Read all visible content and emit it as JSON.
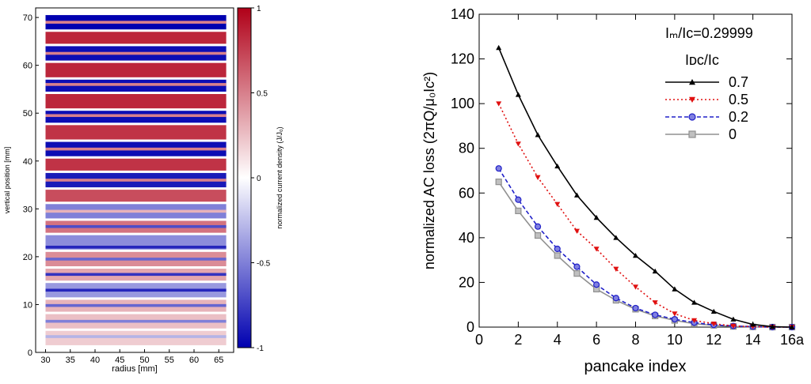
{
  "chart_data": [
    {
      "type": "heatmap",
      "xlabel": "radius [mm]",
      "ylabel": "vertical position [mm]",
      "xlim": [
        28,
        68
      ],
      "ylim": [
        0,
        72
      ],
      "x_ticks": [
        "30",
        "35",
        "40",
        "45",
        "50",
        "55",
        "60",
        "65"
      ],
      "y_ticks": [
        "0",
        "10",
        "20",
        "30",
        "40",
        "50",
        "60",
        "70"
      ],
      "x_extent": [
        30,
        66.5
      ],
      "layer_bands": [
        {
          "y0": 67.5,
          "y1": 70.5,
          "value": -1
        },
        {
          "y0": 64.5,
          "y1": 67.0,
          "value": 0.85
        },
        {
          "y0": 61.0,
          "y1": 64.0,
          "value": -0.95
        },
        {
          "y0": 57.5,
          "y1": 60.5,
          "value": 0.85
        },
        {
          "y0": 54.5,
          "y1": 57.0,
          "value": -0.95
        },
        {
          "y0": 51.0,
          "y1": 54.0,
          "value": 0.85
        },
        {
          "y0": 48.0,
          "y1": 50.5,
          "value": -0.95
        },
        {
          "y0": 44.5,
          "y1": 47.5,
          "value": 0.8
        },
        {
          "y0": 41.0,
          "y1": 44.0,
          "value": -0.95
        },
        {
          "y0": 38.0,
          "y1": 40.5,
          "value": 0.8
        },
        {
          "y0": 34.5,
          "y1": 37.5,
          "value": -0.9
        },
        {
          "y0": 31.5,
          "y1": 34.0,
          "value": 0.7
        },
        {
          "y0": 28.0,
          "y1": 31.0,
          "value": -0.5
        },
        {
          "y0": 25.0,
          "y1": 27.5,
          "value": 0.55
        },
        {
          "y0": 21.5,
          "y1": 24.5,
          "value": -0.45
        },
        {
          "y0": 18.0,
          "y1": 21.0,
          "value": 0.45
        },
        {
          "y0": 15.0,
          "y1": 17.5,
          "value": 0.35
        },
        {
          "y0": 11.5,
          "y1": 14.5,
          "value": -0.4
        },
        {
          "y0": 8.5,
          "y1": 11.0,
          "value": 0.3
        },
        {
          "y0": 5.0,
          "y1": 8.0,
          "value": 0.25
        },
        {
          "y0": 1.5,
          "y1": 4.5,
          "value": 0.2
        }
      ],
      "stripes": [
        {
          "y": 69.0,
          "value": 0.5
        },
        {
          "y": 62.5,
          "value": 0.5
        },
        {
          "y": 56.0,
          "value": 0.5
        },
        {
          "y": 49.5,
          "value": 0.5
        },
        {
          "y": 42.5,
          "value": 0.5
        },
        {
          "y": 36.0,
          "value": 0.5
        },
        {
          "y": 29.5,
          "value": 0.3
        },
        {
          "y": 26.3,
          "value": -0.7
        },
        {
          "y": 22.0,
          "value": -0.85
        },
        {
          "y": 19.5,
          "value": -0.6
        },
        {
          "y": 16.3,
          "value": -0.8
        },
        {
          "y": 13.0,
          "value": -0.85
        },
        {
          "y": 9.8,
          "value": -0.6
        },
        {
          "y": 6.5,
          "value": -0.5
        },
        {
          "y": 3.3,
          "value": -0.3
        }
      ],
      "colorbar": {
        "label": "normalized current density (J/J₀)",
        "range": [
          -1,
          1
        ],
        "ticks": [
          "1",
          "0.5",
          "0",
          "-0.5",
          "-1"
        ],
        "colors": {
          "low": "#0000b0",
          "mid": "#ffffff",
          "high": "#b00018"
        }
      }
    },
    {
      "type": "line",
      "xlabel": "pancake index",
      "ylabel": "normalized AC loss (2πQ/μ₀Iᴄ²)",
      "annotation": "Iₘ/Iᴄ=0.29999",
      "legend_title": "Iᴅᴄ/Iᴄ",
      "legend_position": "top-right",
      "xlim": [
        0,
        16
      ],
      "ylim": [
        0,
        140
      ],
      "x_ticks": [
        "0",
        "2",
        "4",
        "6",
        "8",
        "10",
        "12",
        "14",
        "16a"
      ],
      "y_ticks": [
        "0",
        "20",
        "40",
        "60",
        "80",
        "100",
        "120",
        "140"
      ],
      "grid": false,
      "x": [
        1,
        2,
        3,
        4,
        5,
        6,
        7,
        8,
        9,
        10,
        11,
        12,
        13,
        14,
        15,
        16
      ],
      "series": [
        {
          "name": "0.7",
          "color": "#000000",
          "marker": "triangle-up",
          "dash": "solid",
          "values": [
            125,
            104,
            86,
            72,
            59,
            49,
            40,
            32,
            25,
            17,
            11,
            7,
            3.5,
            1.2,
            0.2,
            0
          ]
        },
        {
          "name": "0.5",
          "color": "#e01010",
          "marker": "triangle-down",
          "dash": "dotted",
          "values": [
            100,
            82,
            67,
            55,
            43,
            35,
            26,
            18,
            11,
            6,
            3,
            1.5,
            0.5,
            0.2,
            0,
            0
          ]
        },
        {
          "name": "0.2",
          "color": "#2020c8",
          "marker": "circle",
          "dash": "dashed",
          "values": [
            71,
            57,
            45,
            35,
            27,
            19,
            13,
            8.5,
            5.5,
            3.5,
            2,
            1,
            0.5,
            0.2,
            0,
            0
          ]
        },
        {
          "name": "0",
          "color": "#909090",
          "marker": "square",
          "dash": "solid",
          "values": [
            65,
            52,
            41,
            32,
            24,
            17,
            12,
            8,
            5,
            3,
            1.5,
            0.8,
            0.3,
            0.1,
            0,
            0
          ]
        }
      ]
    }
  ]
}
